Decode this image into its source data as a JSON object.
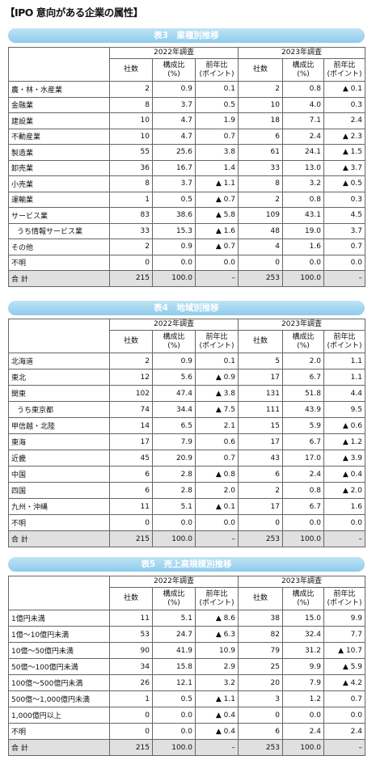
{
  "title": "【IPO 意向がある企業の属性】",
  "tables": [
    {
      "caption": "表3　業種別推移",
      "years": [
        "2022年調査",
        "2023年調査"
      ],
      "columns": [
        [
          "社数"
        ],
        [
          "構成比",
          "(%)"
        ],
        [
          "前年比",
          "(ポイント)"
        ]
      ],
      "rows": [
        [
          "農・林・水産業",
          "2",
          "0.9",
          "0.1",
          "2",
          "0.8",
          "▲ 0.1"
        ],
        [
          "金融業",
          "8",
          "3.7",
          "0.5",
          "10",
          "4.0",
          "0.3"
        ],
        [
          "建設業",
          "10",
          "4.7",
          "1.9",
          "18",
          "7.1",
          "2.4"
        ],
        [
          "不動産業",
          "10",
          "4.7",
          "0.7",
          "6",
          "2.4",
          "▲ 2.3"
        ],
        [
          "製造業",
          "55",
          "25.6",
          "3.8",
          "61",
          "24.1",
          "▲ 1.5"
        ],
        [
          "卸売業",
          "36",
          "16.7",
          "1.4",
          "33",
          "13.0",
          "▲ 3.7"
        ],
        [
          "小売業",
          "8",
          "3.7",
          "▲ 1.1",
          "8",
          "3.2",
          "▲ 0.5"
        ],
        [
          "運輸業",
          "1",
          "0.5",
          "▲ 0.7",
          "2",
          "0.8",
          "0.3"
        ],
        [
          "サービス業",
          "83",
          "38.6",
          "▲ 5.8",
          "109",
          "43.1",
          "4.5"
        ],
        [
          "うち情報サービス業",
          "33",
          "15.3",
          "▲ 1.6",
          "48",
          "19.0",
          "3.7"
        ],
        [
          "その他",
          "2",
          "0.9",
          "▲ 0.7",
          "4",
          "1.6",
          "0.7"
        ],
        [
          "不明",
          "0",
          "0.0",
          "0.0",
          "0",
          "0.0",
          "0.0"
        ],
        [
          "合 計",
          "215",
          "100.0",
          "–",
          "253",
          "100.0",
          "–"
        ]
      ]
    },
    {
      "caption": "表4　地域別推移",
      "years": [
        "2022年調査",
        "2023年調査"
      ],
      "columns": [
        [
          "社数"
        ],
        [
          "構成比",
          "(%)"
        ],
        [
          "前年比",
          "(ポイント)"
        ]
      ],
      "rows": [
        [
          "北海道",
          "2",
          "0.9",
          "0.1",
          "5",
          "2.0",
          "1.1"
        ],
        [
          "東北",
          "12",
          "5.6",
          "▲ 0.9",
          "17",
          "6.7",
          "1.1"
        ],
        [
          "関東",
          "102",
          "47.4",
          "▲ 3.8",
          "131",
          "51.8",
          "4.4"
        ],
        [
          "うち東京都",
          "74",
          "34.4",
          "▲ 7.5",
          "111",
          "43.9",
          "9.5"
        ],
        [
          "甲信越・北陸",
          "14",
          "6.5",
          "2.1",
          "15",
          "5.9",
          "▲ 0.6"
        ],
        [
          "東海",
          "17",
          "7.9",
          "0.6",
          "17",
          "6.7",
          "▲ 1.2"
        ],
        [
          "近畿",
          "45",
          "20.9",
          "0.7",
          "43",
          "17.0",
          "▲ 3.9"
        ],
        [
          "中国",
          "6",
          "2.8",
          "▲ 0.8",
          "6",
          "2.4",
          "▲ 0.4"
        ],
        [
          "四国",
          "6",
          "2.8",
          "2.0",
          "2",
          "0.8",
          "▲ 2.0"
        ],
        [
          "九州・沖縄",
          "11",
          "5.1",
          "▲ 0.1",
          "17",
          "6.7",
          "1.6"
        ],
        [
          "不明",
          "0",
          "0.0",
          "0.0",
          "0",
          "0.0",
          "0.0"
        ],
        [
          "合 計",
          "215",
          "100.0",
          "–",
          "253",
          "100.0",
          "–"
        ]
      ]
    },
    {
      "caption": "表5　売上高規模別推移",
      "years": [
        "2022年調査",
        "2023年調査"
      ],
      "columns": [
        [
          "社数"
        ],
        [
          "構成比",
          "(%)"
        ],
        [
          "前年比",
          "(ポイント)"
        ]
      ],
      "rows": [
        [
          "1億円未満",
          "11",
          "5.1",
          "▲ 8.6",
          "38",
          "15.0",
          "9.9"
        ],
        [
          "1億〜10億円未満",
          "53",
          "24.7",
          "▲ 6.3",
          "82",
          "32.4",
          "7.7"
        ],
        [
          "10億〜50億円未満",
          "90",
          "41.9",
          "10.9",
          "79",
          "31.2",
          "▲ 10.7"
        ],
        [
          "50億〜100億円未満",
          "34",
          "15.8",
          "2.9",
          "25",
          "9.9",
          "▲ 5.9"
        ],
        [
          "100億〜500億円未満",
          "26",
          "12.1",
          "3.2",
          "20",
          "7.9",
          "▲ 4.2"
        ],
        [
          "500億〜1,000億円未満",
          "1",
          "0.5",
          "▲ 1.1",
          "3",
          "1.2",
          "0.7"
        ],
        [
          "1,000億円以上",
          "0",
          "0.0",
          "▲ 0.4",
          "0",
          "0.0",
          "0.0"
        ],
        [
          "不明",
          "0",
          "0.0",
          "▲ 0.4",
          "6",
          "2.4",
          "2.4"
        ],
        [
          "合 計",
          "215",
          "100.0",
          "–",
          "253",
          "100.0",
          "–"
        ]
      ]
    }
  ]
}
